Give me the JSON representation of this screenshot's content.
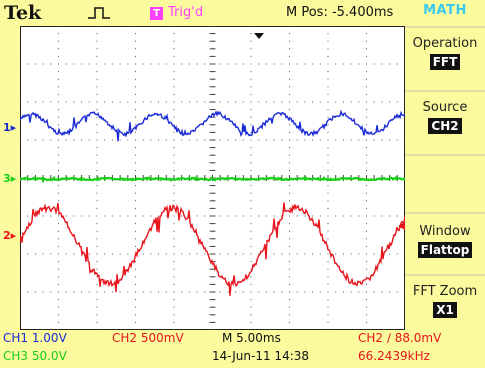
{
  "header": {
    "brand": "Tek",
    "trigger_badge": "T",
    "trigger_status": "Trig'd",
    "position": "M Pos: -5.400ms"
  },
  "channel_markers": {
    "ch1": "1",
    "ch3": "3",
    "ch2": "2"
  },
  "menu": {
    "title": "MATH",
    "items": [
      {
        "label": "Operation",
        "value": "FFT"
      },
      {
        "label": "Source",
        "value": "CH2"
      },
      {
        "label": "",
        "value": ""
      },
      {
        "label": "Window",
        "value": "Flattop"
      },
      {
        "label": "FFT Zoom",
        "value": "X1"
      }
    ]
  },
  "readouts": {
    "ch1_scale": "CH1  1.00V",
    "ch2_scale": "CH2  500mV",
    "timebase": "M 5.00ms",
    "trigger": "CH2 ∕ 88.0mV",
    "ch3_scale": "CH3  50.0V",
    "date": "14-Jun-11 14:38",
    "frequency": "66.2439kHz"
  },
  "colors": {
    "ch1": "#1a2bd6",
    "ch2": "#e8141c",
    "ch3": "#18d018",
    "math": "#3ac8f0",
    "trigger": "#ff40ff"
  }
}
